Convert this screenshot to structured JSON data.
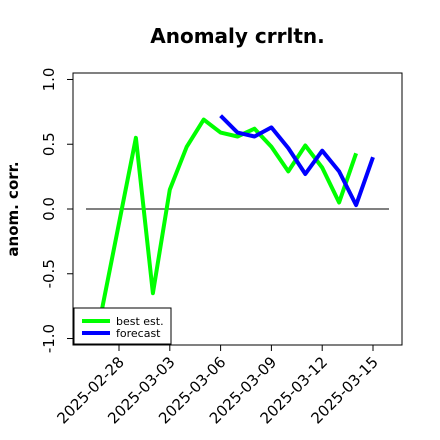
{
  "chart_data": {
    "type": "line",
    "title": "Anomaly crrltn.",
    "ylabel": "anom. corr.",
    "xlabel": "",
    "ylim": [
      -1.05,
      1.05
    ],
    "yticks": [
      -1.0,
      -0.5,
      0.0,
      0.5,
      1.0
    ],
    "ytick_labels": [
      "-1.0",
      "-0.5",
      "0.0",
      "0.5",
      "1.0"
    ],
    "xticks": [
      "2025-02-28",
      "2025-03-03",
      "2025-03-06",
      "2025-03-09",
      "2025-03-12",
      "2025-03-15"
    ],
    "xtick_colors": [
      "#000000",
      "#000000",
      "#008000",
      "#000000",
      "#000000",
      "#000000"
    ],
    "x_start": "2025-02-28",
    "reference_line": 0.0,
    "legend_position": "lower-left",
    "series": [
      {
        "name": "best est.",
        "color": "#00ff00",
        "x": [
          "2025-02-27",
          "2025-03-01",
          "2025-03-02",
          "2025-03-03",
          "2025-03-04",
          "2025-03-05",
          "2025-03-06",
          "2025-03-07",
          "2025-03-08",
          "2025-03-09",
          "2025-03-10",
          "2025-03-11",
          "2025-03-12",
          "2025-03-13",
          "2025-03-14",
          "2025-03-15"
        ],
        "values": [
          -0.77,
          0.55,
          -0.65,
          0.15,
          0.48,
          0.69,
          0.59,
          0.56,
          0.62,
          0.48,
          0.29,
          0.49,
          0.32,
          0.05,
          0.43,
          null
        ]
      },
      {
        "name": "forecast",
        "color": "#0000ff",
        "x": [
          "2025-03-06",
          "2025-03-07",
          "2025-03-08",
          "2025-03-09",
          "2025-03-10",
          "2025-03-11",
          "2025-03-12",
          "2025-03-13",
          "2025-03-14",
          "2025-03-15"
        ],
        "values": [
          0.72,
          0.59,
          0.56,
          0.63,
          0.47,
          0.27,
          0.45,
          0.29,
          0.03,
          0.4
        ]
      }
    ]
  }
}
